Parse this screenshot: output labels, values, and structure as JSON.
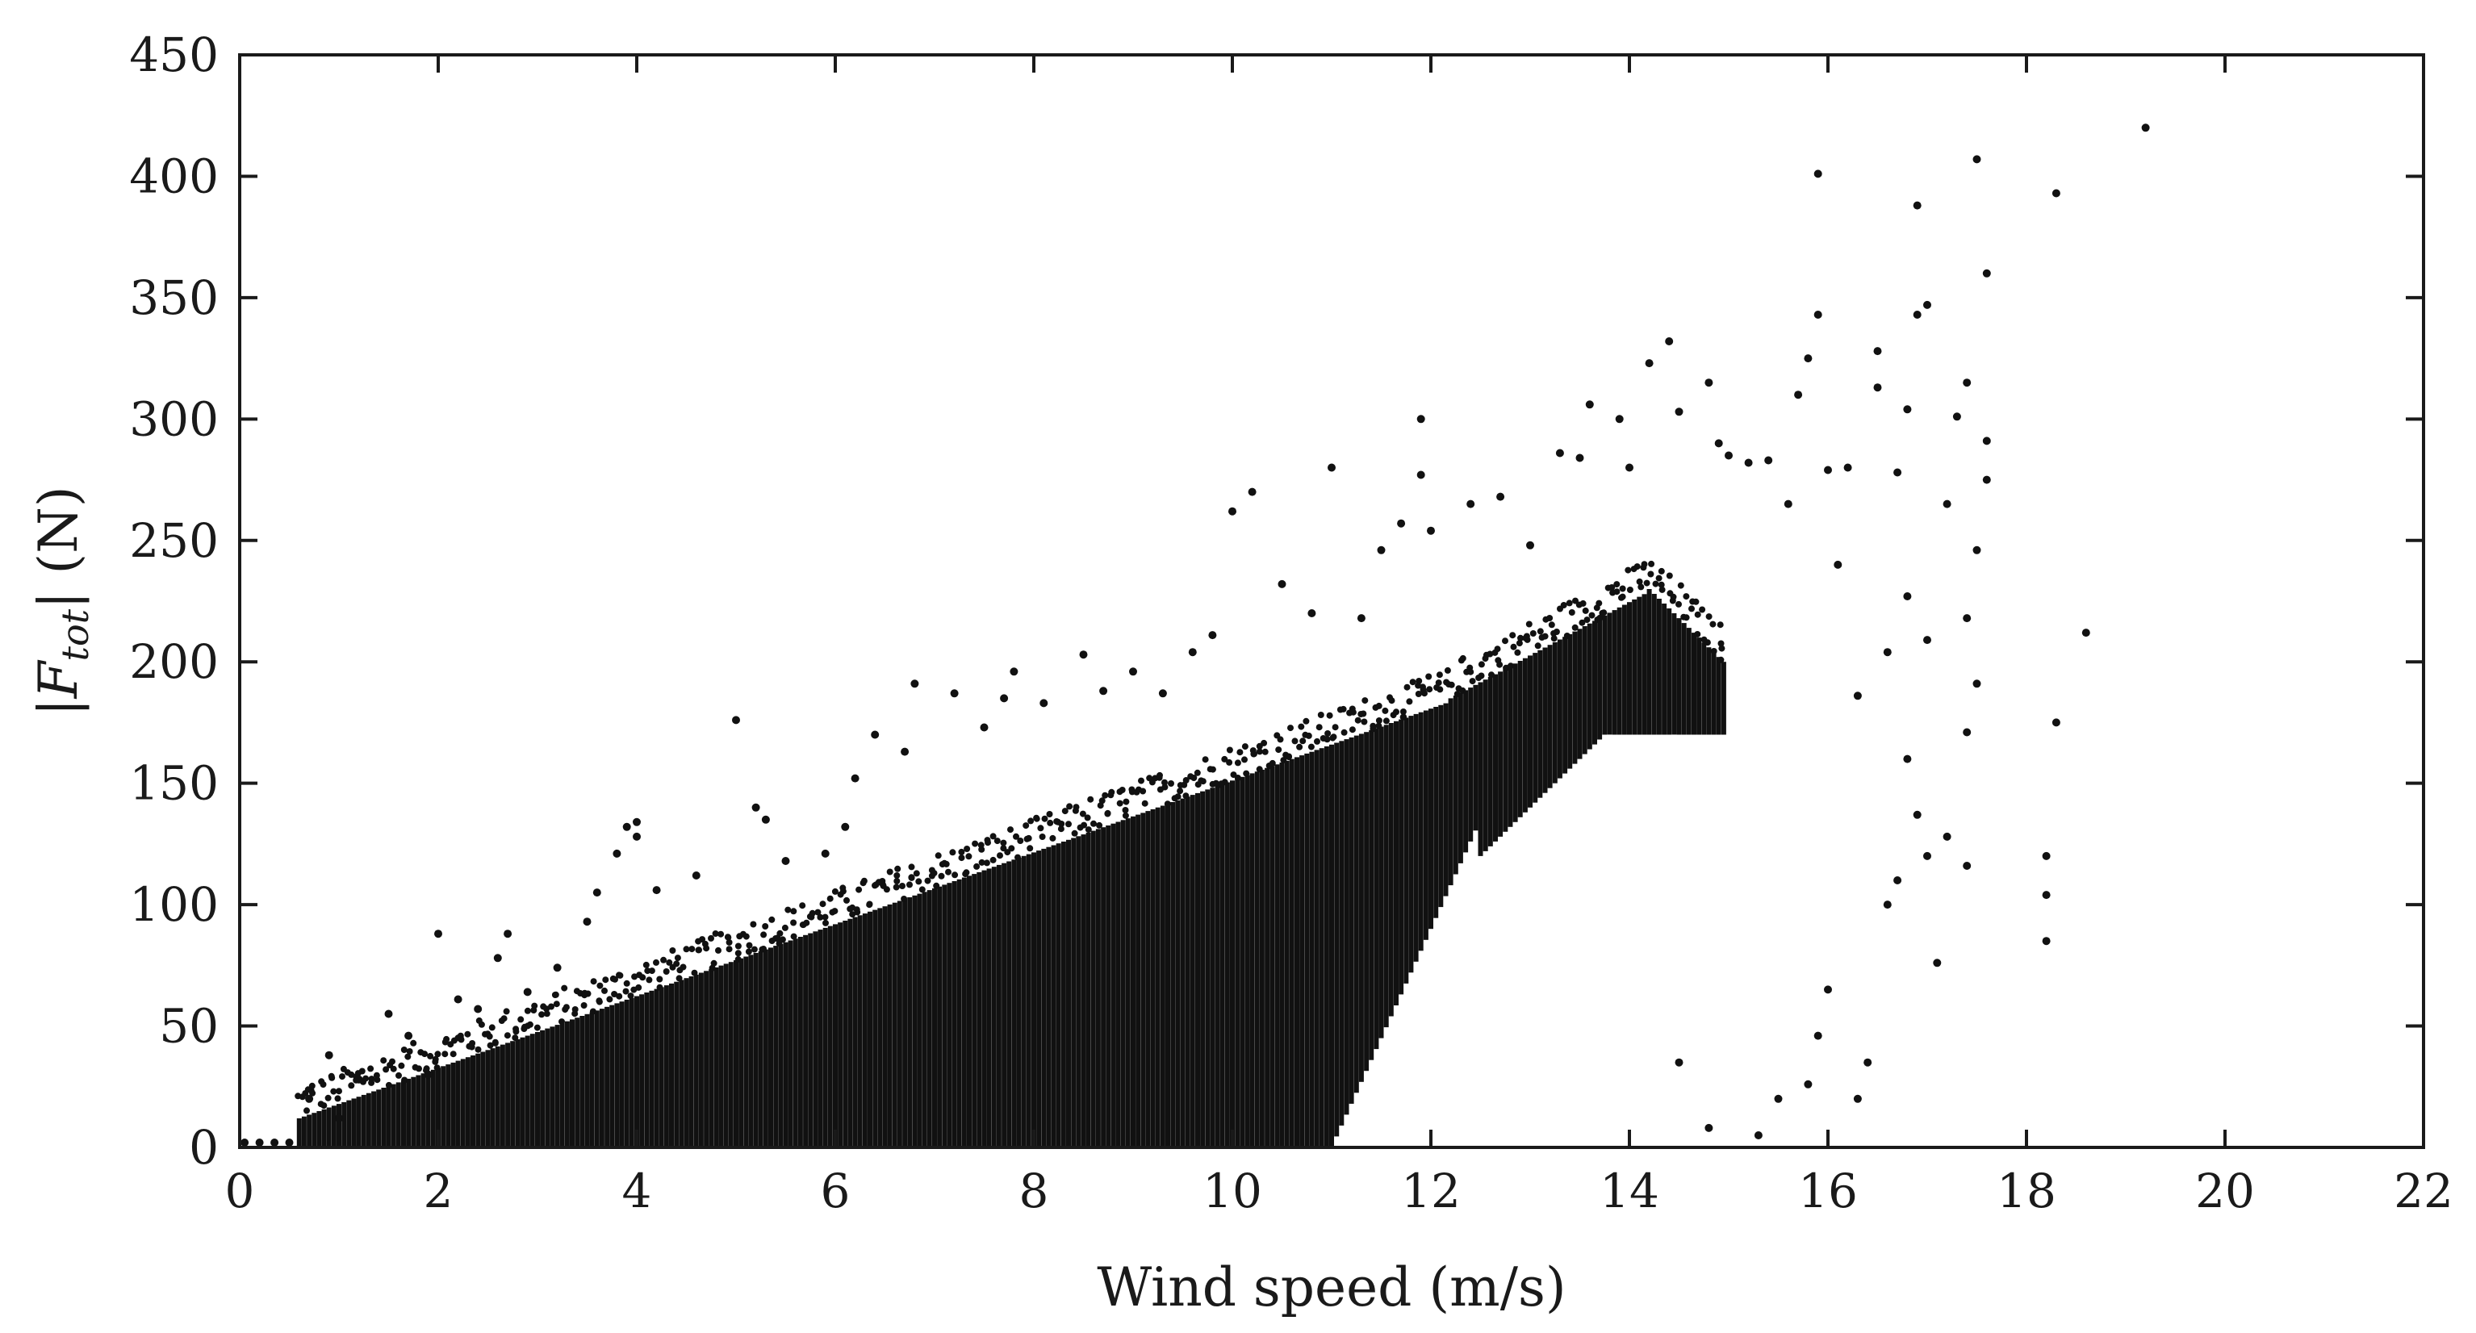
{
  "chart_data": {
    "type": "scatter",
    "title": "",
    "xlabel": "Wind speed (m/s)",
    "ylabel": {
      "open": "|",
      "symbol": "F",
      "subscript": "tot",
      "close": "| (N)"
    },
    "xlim": [
      0,
      22
    ],
    "ylim": [
      0,
      450
    ],
    "xticks": [
      0,
      2,
      4,
      6,
      8,
      10,
      12,
      14,
      16,
      18,
      20,
      22
    ],
    "yticks": [
      0,
      50,
      100,
      150,
      200,
      250,
      300,
      350,
      400,
      450
    ],
    "grid": false,
    "legend": "none",
    "marker_color": "#111111",
    "series": [
      {
        "values_note_free": true,
        "points": [
          [
            0.05,
            2
          ],
          [
            0.2,
            2
          ],
          [
            0.35,
            2
          ],
          [
            0.5,
            2
          ],
          [
            0.7,
            20
          ],
          [
            0.9,
            38
          ],
          [
            1.0,
            12
          ],
          [
            1.2,
            28
          ],
          [
            1.5,
            55
          ],
          [
            1.7,
            46
          ],
          [
            1.9,
            30
          ],
          [
            2.0,
            88
          ],
          [
            2.2,
            61
          ],
          [
            2.4,
            57
          ],
          [
            2.6,
            78
          ],
          [
            2.7,
            88
          ],
          [
            2.9,
            64
          ],
          [
            3.2,
            74
          ],
          [
            3.5,
            93
          ],
          [
            3.6,
            105
          ],
          [
            3.8,
            121
          ],
          [
            3.9,
            132
          ],
          [
            4.0,
            128
          ],
          [
            4.0,
            134
          ],
          [
            4.2,
            106
          ],
          [
            4.6,
            112
          ],
          [
            5.0,
            176
          ],
          [
            5.2,
            140
          ],
          [
            5.3,
            135
          ],
          [
            5.5,
            118
          ],
          [
            5.9,
            121
          ],
          [
            6.1,
            132
          ],
          [
            6.2,
            152
          ],
          [
            6.4,
            170
          ],
          [
            6.7,
            163
          ],
          [
            6.8,
            191
          ],
          [
            7.2,
            187
          ],
          [
            7.5,
            173
          ],
          [
            7.7,
            185
          ],
          [
            7.8,
            196
          ],
          [
            8.1,
            183
          ],
          [
            8.5,
            203
          ],
          [
            8.7,
            188
          ],
          [
            9.0,
            196
          ],
          [
            9.3,
            187
          ],
          [
            9.6,
            204
          ],
          [
            9.8,
            211
          ],
          [
            10.0,
            262
          ],
          [
            10.2,
            270
          ],
          [
            10.5,
            232
          ],
          [
            10.8,
            220
          ],
          [
            11.0,
            280
          ],
          [
            11.3,
            218
          ],
          [
            11.5,
            246
          ],
          [
            11.7,
            257
          ],
          [
            11.9,
            300
          ],
          [
            11.9,
            277
          ],
          [
            12.0,
            254
          ],
          [
            12.4,
            265
          ],
          [
            12.7,
            268
          ],
          [
            13.0,
            248
          ],
          [
            13.3,
            286
          ],
          [
            13.5,
            284
          ],
          [
            13.6,
            306
          ],
          [
            13.9,
            300
          ],
          [
            14.0,
            280
          ],
          [
            14.2,
            323
          ],
          [
            14.4,
            332
          ],
          [
            14.5,
            303
          ],
          [
            14.8,
            315
          ],
          [
            14.9,
            290
          ],
          [
            15.0,
            285
          ],
          [
            15.2,
            282
          ],
          [
            15.4,
            283
          ],
          [
            15.6,
            265
          ],
          [
            15.7,
            310
          ],
          [
            15.8,
            325
          ],
          [
            15.9,
            401
          ],
          [
            15.9,
            343
          ],
          [
            16.0,
            279
          ],
          [
            16.2,
            280
          ],
          [
            16.5,
            313
          ],
          [
            16.5,
            328
          ],
          [
            16.7,
            278
          ],
          [
            16.8,
            304
          ],
          [
            16.9,
            388
          ],
          [
            16.9,
            343
          ],
          [
            17.0,
            347
          ],
          [
            17.3,
            301
          ],
          [
            17.4,
            315
          ],
          [
            17.5,
            407
          ],
          [
            17.6,
            360
          ],
          [
            17.6,
            291
          ],
          [
            17.6,
            275
          ],
          [
            17.5,
            246
          ],
          [
            18.3,
            393
          ],
          [
            18.3,
            175
          ],
          [
            18.6,
            212
          ],
          [
            19.2,
            420
          ],
          [
            18.2,
            120
          ],
          [
            18.2,
            104
          ],
          [
            18.2,
            85
          ],
          [
            17.4,
            171
          ],
          [
            17.4,
            116
          ],
          [
            17.1,
            76
          ],
          [
            16.9,
            137
          ],
          [
            16.6,
            100
          ],
          [
            16.4,
            35
          ],
          [
            16.3,
            20
          ],
          [
            16.0,
            65
          ],
          [
            15.9,
            46
          ],
          [
            15.8,
            26
          ],
          [
            15.5,
            20
          ],
          [
            15.3,
            5
          ],
          [
            14.8,
            8
          ],
          [
            14.5,
            35
          ],
          [
            16.1,
            240
          ],
          [
            16.3,
            186
          ],
          [
            16.6,
            204
          ],
          [
            16.8,
            227
          ],
          [
            17.0,
            209
          ],
          [
            17.2,
            265
          ],
          [
            17.4,
            218
          ],
          [
            17.5,
            191
          ],
          [
            17.0,
            120
          ],
          [
            17.2,
            128
          ],
          [
            16.8,
            160
          ],
          [
            16.7,
            110
          ]
        ]
      }
    ]
  }
}
